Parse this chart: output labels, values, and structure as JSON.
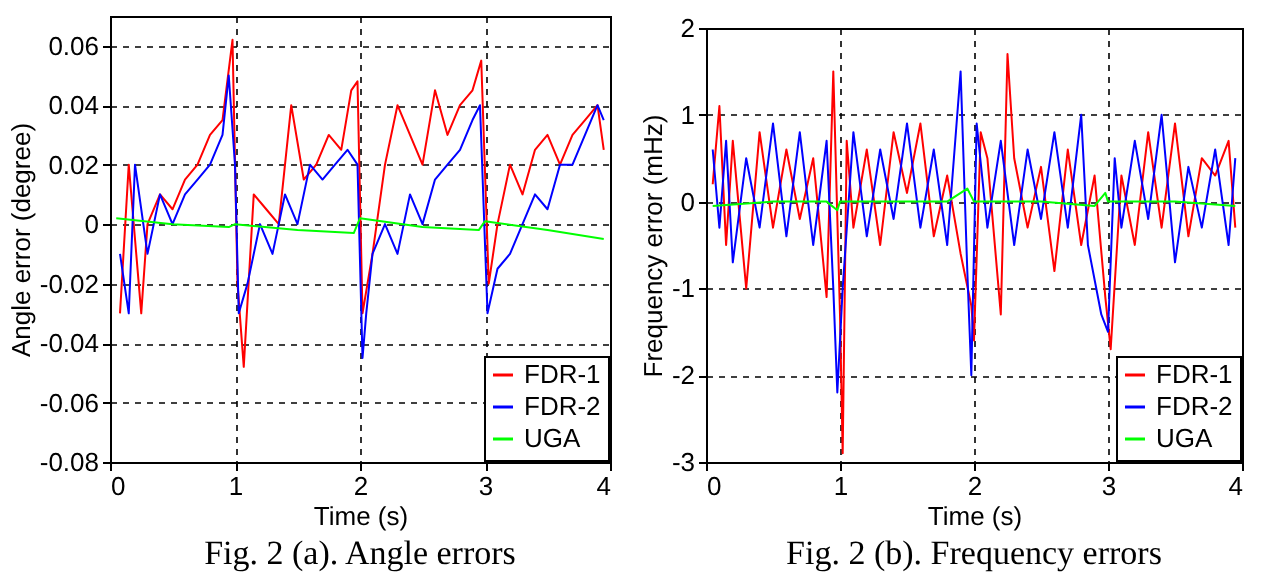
{
  "chart_data": [
    {
      "type": "line",
      "title": "Fig. 2 (a). Angle errors",
      "xlabel": "Time (s)",
      "ylabel": "Angle error (degree)",
      "xlim": [
        0,
        4
      ],
      "xticks": [
        0,
        1,
        2,
        3,
        4
      ],
      "ylim": [
        -0.08,
        0.07
      ],
      "yticks": [
        -0.08,
        -0.06,
        -0.04,
        -0.02,
        0,
        0.02,
        0.04,
        0.06
      ],
      "grid": true,
      "legend": "bottom right",
      "series": [
        {
          "name": "FDR-1",
          "color": "#ff0000",
          "x": [
            0.08,
            0.15,
            0.25,
            0.3,
            0.4,
            0.5,
            0.6,
            0.7,
            0.8,
            0.9,
            0.98,
            1.02,
            1.07,
            1.15,
            1.25,
            1.35,
            1.45,
            1.55,
            1.65,
            1.75,
            1.85,
            1.93,
            1.98,
            2.02,
            2.1,
            2.2,
            2.3,
            2.4,
            2.5,
            2.6,
            2.7,
            2.8,
            2.9,
            2.97,
            3.03,
            3.1,
            3.2,
            3.3,
            3.4,
            3.5,
            3.6,
            3.7,
            3.8,
            3.9,
            3.95
          ],
          "values": [
            -0.03,
            0.02,
            -0.03,
            0.0,
            0.01,
            0.005,
            0.015,
            0.02,
            0.03,
            0.035,
            0.062,
            -0.02,
            -0.048,
            0.01,
            0.005,
            0.0,
            0.04,
            0.015,
            0.02,
            0.03,
            0.025,
            0.045,
            0.048,
            -0.03,
            -0.01,
            0.02,
            0.04,
            0.03,
            0.02,
            0.045,
            0.03,
            0.04,
            0.045,
            0.055,
            -0.02,
            0.0,
            0.02,
            0.01,
            0.025,
            0.03,
            0.02,
            0.03,
            0.035,
            0.04,
            0.025
          ]
        },
        {
          "name": "FDR-2",
          "color": "#0000ff",
          "x": [
            0.08,
            0.15,
            0.2,
            0.3,
            0.4,
            0.5,
            0.6,
            0.7,
            0.8,
            0.9,
            0.95,
            1.0,
            1.03,
            1.1,
            1.2,
            1.3,
            1.4,
            1.5,
            1.6,
            1.7,
            1.8,
            1.9,
            1.98,
            2.02,
            2.05,
            2.1,
            2.2,
            2.3,
            2.4,
            2.5,
            2.6,
            2.7,
            2.8,
            2.9,
            2.96,
            3.02,
            3.1,
            3.2,
            3.3,
            3.4,
            3.5,
            3.6,
            3.7,
            3.8,
            3.9,
            3.95
          ],
          "values": [
            -0.01,
            -0.03,
            0.02,
            -0.01,
            0.01,
            0.0,
            0.01,
            0.015,
            0.02,
            0.03,
            0.05,
            0.02,
            -0.03,
            -0.02,
            0.0,
            -0.01,
            0.01,
            0.0,
            0.02,
            0.015,
            0.02,
            0.025,
            0.02,
            -0.045,
            -0.03,
            -0.01,
            0.0,
            -0.01,
            0.01,
            0.0,
            0.015,
            0.02,
            0.025,
            0.035,
            0.04,
            -0.03,
            -0.015,
            -0.01,
            0.0,
            0.01,
            0.005,
            0.02,
            0.02,
            0.03,
            0.04,
            0.035
          ]
        },
        {
          "name": "UGA",
          "color": "#00ff00",
          "x": [
            0.05,
            0.5,
            0.95,
            1.0,
            1.5,
            1.95,
            2.0,
            2.5,
            2.95,
            3.0,
            3.5,
            3.95
          ],
          "values": [
            0.002,
            0.0,
            -0.001,
            0.0,
            -0.002,
            -0.003,
            0.002,
            -0.001,
            -0.002,
            0.001,
            -0.002,
            -0.005
          ]
        }
      ]
    },
    {
      "type": "line",
      "title": "Fig. 2 (b). Frequency errors",
      "xlabel": "Time (s)",
      "ylabel": "Frequency error (mHz)",
      "xlim": [
        0,
        4
      ],
      "xticks": [
        0,
        1,
        2,
        3,
        4
      ],
      "ylim": [
        -3,
        2
      ],
      "yticks": [
        -3,
        -2,
        -1,
        0,
        1,
        2
      ],
      "grid": true,
      "legend": "bottom right",
      "series": [
        {
          "name": "FDR-1",
          "color": "#ff0000",
          "x": [
            0.05,
            0.1,
            0.15,
            0.2,
            0.3,
            0.4,
            0.5,
            0.6,
            0.7,
            0.8,
            0.9,
            0.95,
            1.0,
            1.02,
            1.05,
            1.1,
            1.2,
            1.3,
            1.4,
            1.5,
            1.6,
            1.7,
            1.8,
            1.9,
            1.98,
            2.0,
            2.05,
            2.1,
            2.2,
            2.25,
            2.3,
            2.4,
            2.5,
            2.6,
            2.7,
            2.8,
            2.9,
            2.98,
            3.02,
            3.1,
            3.2,
            3.3,
            3.4,
            3.5,
            3.6,
            3.7,
            3.8,
            3.9,
            3.95
          ],
          "values": [
            0.2,
            1.1,
            -0.5,
            0.7,
            -1.0,
            0.8,
            -0.3,
            0.6,
            -0.2,
            0.5,
            -1.1,
            1.5,
            -1.3,
            -2.9,
            0.7,
            -0.3,
            0.6,
            -0.5,
            0.8,
            0.1,
            0.9,
            -0.4,
            0.3,
            -0.6,
            -1.2,
            -1.6,
            0.8,
            0.5,
            -1.3,
            1.7,
            0.5,
            -0.3,
            0.4,
            -0.8,
            0.6,
            -0.5,
            0.3,
            -1.1,
            -1.7,
            0.3,
            -0.5,
            0.8,
            -0.3,
            0.9,
            -0.4,
            0.5,
            0.3,
            0.7,
            -0.3
          ]
        },
        {
          "name": "FDR-2",
          "color": "#0000ff",
          "x": [
            0.05,
            0.1,
            0.15,
            0.2,
            0.3,
            0.4,
            0.5,
            0.6,
            0.7,
            0.8,
            0.9,
            0.95,
            0.98,
            1.02,
            1.1,
            1.2,
            1.3,
            1.4,
            1.5,
            1.6,
            1.7,
            1.8,
            1.9,
            1.95,
            1.98,
            2.02,
            2.1,
            2.2,
            2.3,
            2.4,
            2.5,
            2.6,
            2.7,
            2.8,
            2.85,
            2.9,
            2.95,
            3.0,
            3.05,
            3.1,
            3.2,
            3.3,
            3.4,
            3.5,
            3.6,
            3.7,
            3.8,
            3.9,
            3.95
          ],
          "values": [
            0.6,
            -0.3,
            0.7,
            -0.7,
            0.5,
            -0.3,
            0.9,
            -0.4,
            0.8,
            -0.5,
            0.7,
            -1.0,
            -2.2,
            -1.0,
            0.8,
            -0.4,
            0.6,
            -0.2,
            0.9,
            -0.3,
            0.6,
            -0.5,
            1.5,
            -0.8,
            -2.0,
            0.9,
            -0.3,
            0.7,
            -0.5,
            0.6,
            -0.2,
            0.8,
            -0.3,
            1.0,
            -0.5,
            -0.9,
            -1.3,
            -1.5,
            0.5,
            -0.3,
            0.7,
            -0.2,
            1.0,
            -0.7,
            0.4,
            -0.3,
            0.6,
            -0.5,
            0.5
          ]
        },
        {
          "name": "UGA",
          "color": "#00ff00",
          "x": [
            0.05,
            0.5,
            0.9,
            0.98,
            1.0,
            1.5,
            1.8,
            1.95,
            2.0,
            2.5,
            2.9,
            2.98,
            3.0,
            3.5,
            3.95
          ],
          "values": [
            -0.05,
            0.0,
            0.0,
            -0.1,
            0.0,
            0.0,
            0.0,
            0.15,
            0.0,
            0.0,
            -0.05,
            0.1,
            0.0,
            0.0,
            -0.05
          ]
        }
      ]
    }
  ]
}
